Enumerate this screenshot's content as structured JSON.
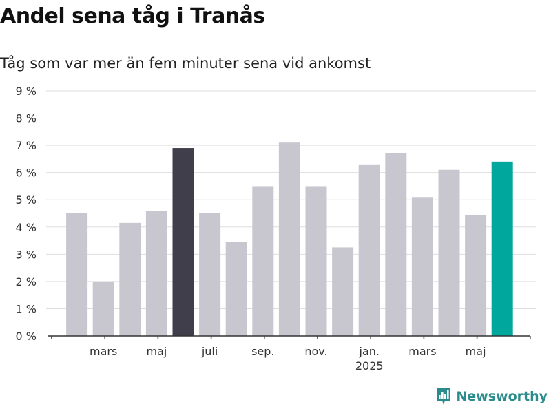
{
  "title": "Andel sena tåg i Tranås",
  "subtitle": "Tåg som var mer än fem minuter sena vid ankomst",
  "brand": {
    "name": "Newsworthy",
    "color": "#2a8c8c"
  },
  "colors": {
    "default_bar": "#c8c7cf",
    "dark_bar": "#3f3e4a",
    "highlight_bar": "#00a79d",
    "grid": "#dedede",
    "axis": "#333333"
  },
  "chart_data": {
    "type": "bar",
    "ylim": [
      0,
      9
    ],
    "yticks": [
      0,
      1,
      2,
      3,
      4,
      5,
      6,
      7,
      8,
      9
    ],
    "ytick_labels": [
      "0 %",
      "1 %",
      "2 %",
      "3 %",
      "4 %",
      "5 %",
      "6 %",
      "7 %",
      "8 %",
      "9 %"
    ],
    "categories": [
      "2024-02",
      "2024-03",
      "2024-04",
      "2024-05",
      "2024-06",
      "2024-07",
      "2024-08",
      "2024-09",
      "2024-10",
      "2024-11",
      "2024-12",
      "2025-01",
      "2025-02",
      "2025-03",
      "2025-04",
      "2025-05",
      "2025-06",
      "2025-07"
    ],
    "values": [
      4.5,
      2.0,
      4.15,
      4.6,
      6.9,
      4.5,
      3.45,
      5.5,
      7.1,
      5.5,
      3.25,
      6.3,
      6.7,
      5.1,
      6.1,
      4.45,
      6.4,
      null
    ],
    "bar_colors": [
      "default",
      "default",
      "default",
      "default",
      "dark",
      "default",
      "default",
      "default",
      "default",
      "default",
      "default",
      "default",
      "default",
      "default",
      "default",
      "default",
      "highlight",
      null
    ],
    "xtick_labels": [
      {
        "category": "2024-03",
        "label": "mars"
      },
      {
        "category": "2024-05",
        "label": "maj"
      },
      {
        "category": "2024-07",
        "label": "juli"
      },
      {
        "category": "2024-09",
        "label": "sep."
      },
      {
        "category": "2024-11",
        "label": "nov."
      },
      {
        "category": "2025-01",
        "label": "jan.",
        "sublabel": "2025"
      },
      {
        "category": "2025-03",
        "label": "mars"
      },
      {
        "category": "2025-05",
        "label": "maj"
      }
    ],
    "grid": true
  }
}
